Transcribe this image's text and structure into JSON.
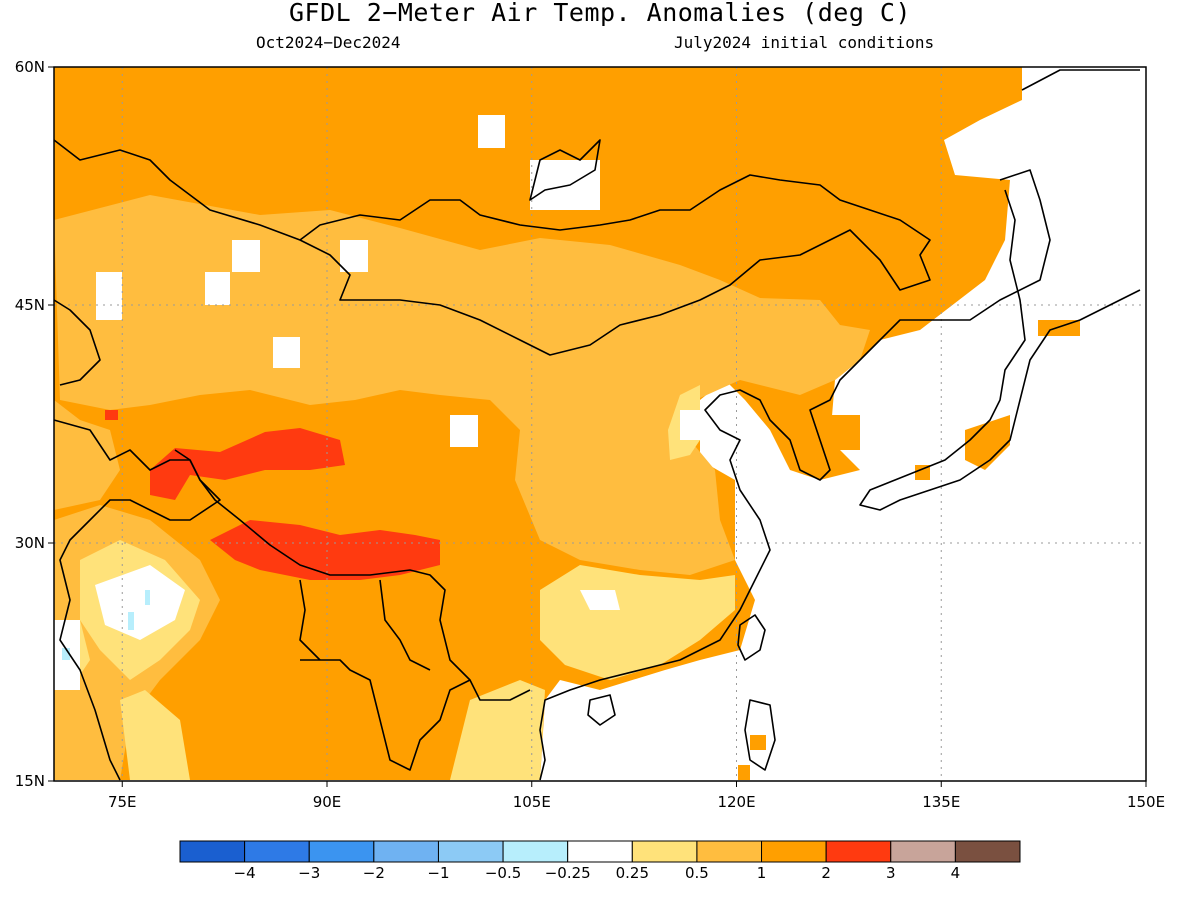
{
  "title": "GFDL 2−Meter Air Temp. Anomalies (deg C)",
  "subtitle_left": "Oct2024−Dec2024",
  "subtitle_right": "July2024 initial conditions",
  "axes": {
    "lon_ticks": [
      {
        "value": 75,
        "label": "75E"
      },
      {
        "value": 90,
        "label": "90E"
      },
      {
        "value": 105,
        "label": "105E"
      },
      {
        "value": 120,
        "label": "120E"
      },
      {
        "value": 135,
        "label": "135E"
      },
      {
        "value": 150,
        "label": "150E"
      }
    ],
    "lat_ticks": [
      {
        "value": 60,
        "label": "60N"
      },
      {
        "value": 45,
        "label": "45N"
      },
      {
        "value": 30,
        "label": "30N"
      },
      {
        "value": 15,
        "label": "15N"
      }
    ],
    "lon_range": [
      70,
      150
    ],
    "lat_range": [
      15,
      60
    ],
    "grid": "dotted"
  },
  "colorbar": {
    "colors": [
      "#1a5fd0",
      "#2e7ae6",
      "#3b94f0",
      "#6fb2f2",
      "#8ccaf5",
      "#b7eefc",
      "#ffffff",
      "#ffe27a",
      "#ffbd3f",
      "#ff9f00",
      "#ff3a10",
      "#c8a49a",
      "#7a5040"
    ],
    "labels": [
      "−4",
      "−3",
      "−2",
      "−1",
      "−0.5",
      "−0.25",
      "0.25",
      "0.5",
      "1",
      "2",
      "3",
      "4"
    ]
  },
  "legend_colors": {
    "ocean": "#ffffff",
    "anomaly_0_25_to_0_5": "#ffe27a",
    "anomaly_0_5_to_1": "#ffbd3f",
    "anomaly_1_to_2": "#ff9f00",
    "anomaly_2_to_3": "#ff3a10",
    "near_zero": "#ffffff",
    "small_negative": "#b7eefc"
  }
}
